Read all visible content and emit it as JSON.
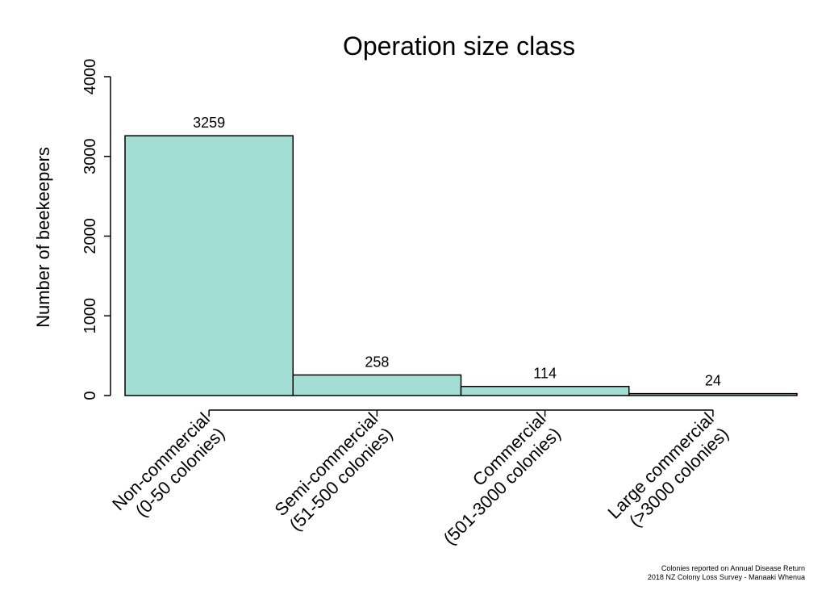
{
  "chart_data": {
    "type": "bar",
    "title": "Operation size class",
    "ylabel": "Number of beekeepers",
    "xlabel": "",
    "ylim": [
      0,
      4000
    ],
    "yticks": [
      0,
      1000,
      2000,
      3000,
      4000
    ],
    "categories": [
      [
        "Non-commercial",
        "(0-50 colonies)"
      ],
      [
        "Semi-commercial",
        "(51-500 colonies)"
      ],
      [
        "Commercial",
        "(501-3000 colonies)"
      ],
      [
        "Large commercial",
        "(>3000 colonies)"
      ]
    ],
    "values": [
      3259,
      258,
      114,
      24
    ],
    "data_labels": [
      "3259",
      "258",
      "114",
      "24"
    ],
    "bar_color": "#a3ded5",
    "grid": false,
    "footnote": [
      "Colonies reported on Annual Disease Return",
      "2018 NZ Colony Loss Survey - Manaaki Whenua"
    ]
  }
}
